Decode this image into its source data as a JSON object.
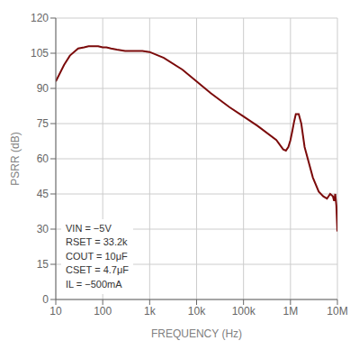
{
  "chart_data": {
    "type": "line",
    "xlabel": "FREQUENCY (Hz)",
    "ylabel": "PSRR (dB)",
    "log": "x",
    "grid": true,
    "color": "#7B0A0A",
    "xlim": [
      10,
      10000000
    ],
    "xticks": [
      10,
      100,
      {
        "value": 1000,
        "label": "1k"
      },
      {
        "value": 10000,
        "label": "10k"
      },
      {
        "value": 100000,
        "label": "100k"
      },
      {
        "value": 1000000,
        "label": "1M"
      },
      {
        "value": 10000000,
        "label": "10M"
      }
    ],
    "ylim": [
      0,
      120
    ],
    "yticks": [
      0,
      15,
      30,
      45,
      60,
      75,
      90,
      105,
      120
    ],
    "annotations": [
      "VIN = −5V",
      "RSET = 33.2k",
      "COUT = 10μF",
      "CSET = 4.7μF",
      "IL = −500mA"
    ],
    "x": [
      10,
      15,
      20,
      30,
      40,
      50,
      60,
      70,
      80,
      100,
      120,
      150,
      200,
      300,
      500,
      700,
      1000,
      2000,
      5000,
      10000,
      20000,
      50000,
      100000,
      200000,
      500000,
      700000,
      800000,
      900000,
      1000000,
      1100000,
      1200000,
      1300000,
      1500000,
      1700000,
      2000000,
      3000000,
      4000000,
      5000000,
      6000000,
      7000000,
      8000000,
      8500000,
      9000000,
      9500000,
      10000000
    ],
    "values": [
      93,
      100,
      104,
      107,
      107.5,
      108,
      108,
      108,
      108,
      107.5,
      107.5,
      107,
      106.5,
      106,
      106,
      106,
      105.5,
      103,
      98,
      93,
      88,
      82,
      78,
      74,
      68,
      64,
      63.5,
      65,
      68,
      72,
      76,
      79,
      79,
      75,
      65,
      52,
      46,
      44,
      43,
      45,
      44,
      42,
      45,
      40,
      29
    ]
  }
}
